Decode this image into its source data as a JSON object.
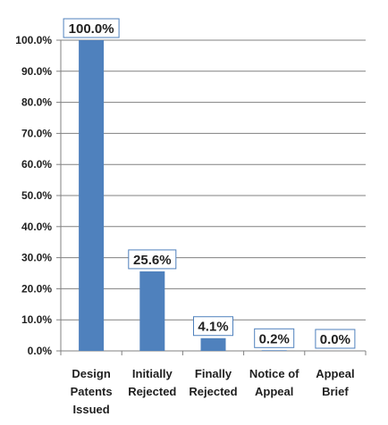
{
  "chart_data": {
    "type": "bar",
    "categories": [
      [
        "Design",
        "Patents",
        "Issued"
      ],
      [
        "Initially",
        "Rejected"
      ],
      [
        "Finally",
        "Rejected"
      ],
      [
        "Notice of",
        "Appeal"
      ],
      [
        "Appeal",
        "Brief"
      ]
    ],
    "values": [
      100.0,
      25.6,
      4.1,
      0.2,
      0.0
    ],
    "data_labels": [
      "100.0%",
      "25.6%",
      "4.1%",
      "0.2%",
      "0.0%"
    ],
    "y_ticks": [
      "0.0%",
      "10.0%",
      "20.0%",
      "30.0%",
      "40.0%",
      "50.0%",
      "60.0%",
      "70.0%",
      "80.0%",
      "90.0%",
      "100.0%"
    ],
    "title": "",
    "xlabel": "",
    "ylabel": "",
    "ylim": [
      0,
      100
    ],
    "grid": true,
    "legend": "none",
    "colors": {
      "bar": "#4f81bd",
      "grid": "#808080",
      "label_border": "#4f81bd"
    }
  }
}
